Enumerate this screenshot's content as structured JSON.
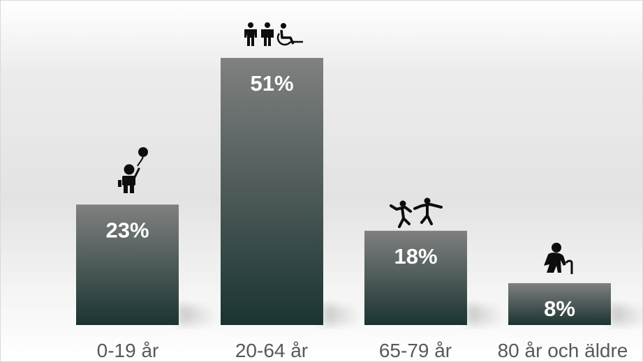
{
  "chart_data": {
    "type": "bar",
    "categories": [
      "0-19 år",
      "20-64 år",
      "65-79 år",
      "80 år och äldre"
    ],
    "values": [
      23,
      51,
      18,
      8
    ],
    "value_labels": [
      "23%",
      "51%",
      "18%",
      "8%"
    ],
    "unit": "%",
    "title": "",
    "xlabel": "",
    "ylabel": "",
    "ylim": [
      0,
      51
    ],
    "grid": false,
    "legend": "none",
    "category_icons": [
      "child-with-balloon-icon",
      "adults-and-wheelchair-user-icon",
      "dancing-seniors-icon",
      "elderly-with-cane-icon"
    ]
  },
  "colors": {
    "bar_top": "#808080",
    "bar_bottom": "#1a3432",
    "label_text": "#ffffff",
    "category_text": "#595959",
    "icon": "#0d0d0d"
  }
}
